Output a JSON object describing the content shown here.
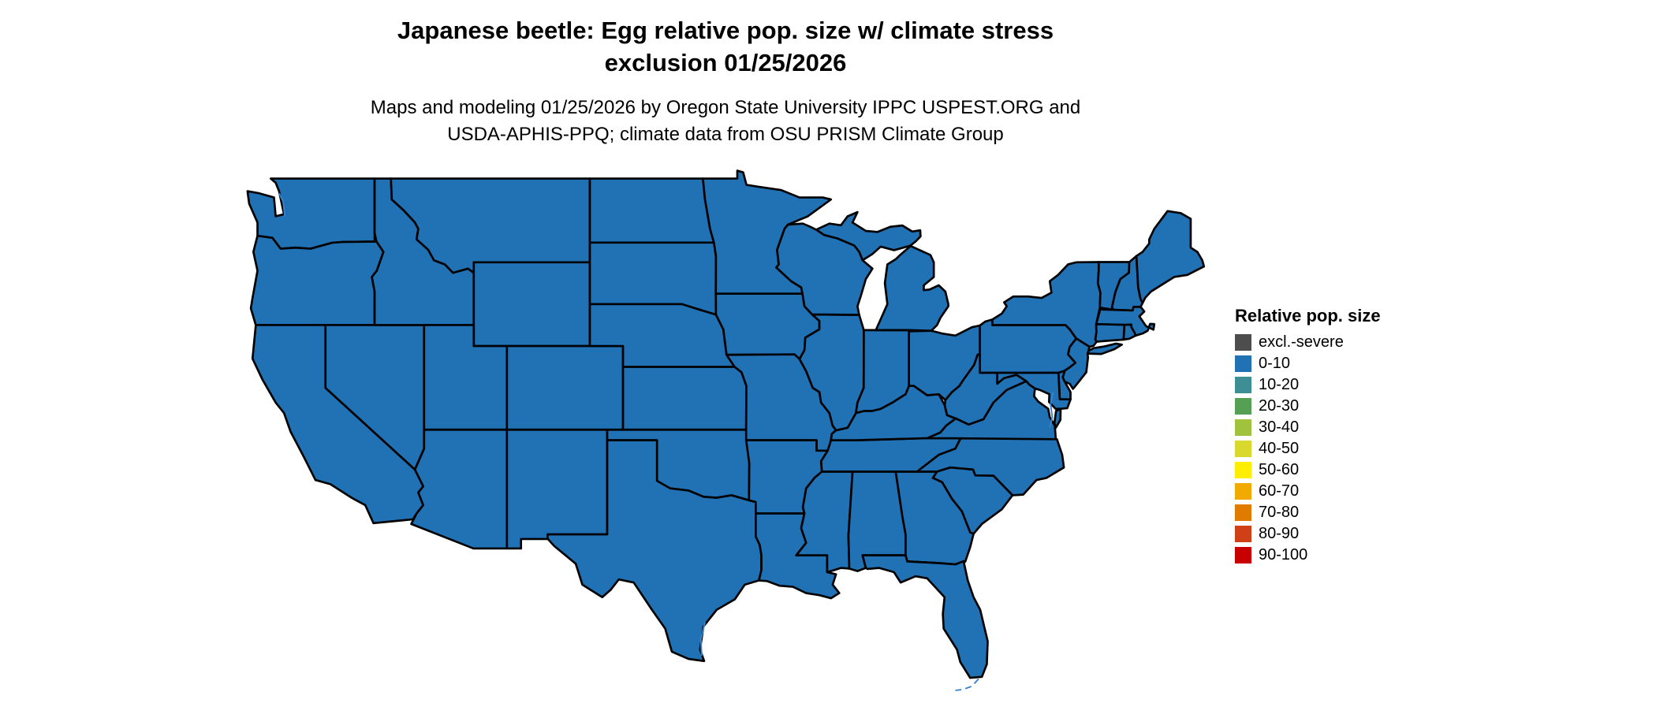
{
  "title": {
    "line1": "Japanese beetle: Egg relative pop. size w/ climate stress",
    "line2": "exclusion 01/25/2026"
  },
  "subtitle": {
    "line1": "Maps and modeling 01/25/2026 by Oregon State University IPPC USPEST.ORG and",
    "line2": "USDA-APHIS-PPQ; climate data from OSU PRISM Climate Group"
  },
  "map": {
    "region": "Continental United States",
    "fill_category": "0-10",
    "fill_color": "#2171b5",
    "border_color": "#000000",
    "water_color": "#3b82d0",
    "background": "#ffffff"
  },
  "legend": {
    "title": "Relative pop. size",
    "items": [
      {
        "label": "excl.-severe",
        "color": "#4d4d4d"
      },
      {
        "label": "0-10",
        "color": "#2171b5"
      },
      {
        "label": "10-20",
        "color": "#3e8e96"
      },
      {
        "label": "20-30",
        "color": "#55a054"
      },
      {
        "label": "30-40",
        "color": "#a0c23c"
      },
      {
        "label": "40-50",
        "color": "#d8d92c"
      },
      {
        "label": "50-60",
        "color": "#ffee00"
      },
      {
        "label": "60-70",
        "color": "#f2a900"
      },
      {
        "label": "70-80",
        "color": "#e07b00"
      },
      {
        "label": "80-90",
        "color": "#d04016"
      },
      {
        "label": "90-100",
        "color": "#c80000"
      }
    ]
  }
}
